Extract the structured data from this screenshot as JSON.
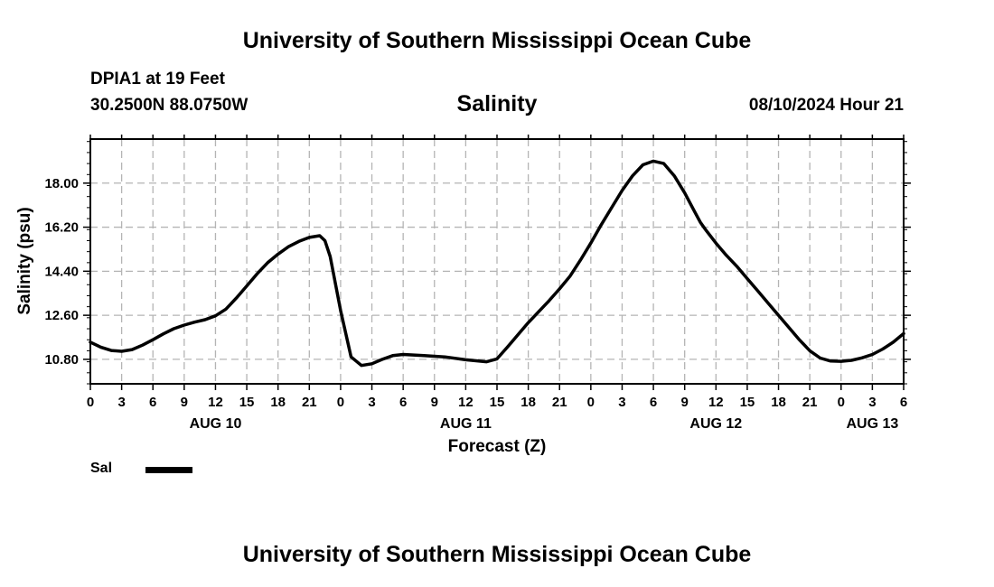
{
  "header": {
    "title": "University of Southern Mississippi Ocean Cube",
    "station": "DPIA1 at 19 Feet",
    "coords": "30.2500N  88.0750W",
    "subtitle": "Salinity",
    "datetime": "08/10/2024 Hour 21"
  },
  "footer": {
    "title": "University of Southern Mississippi Ocean Cube"
  },
  "legend": {
    "label": "Sal",
    "color": "#000000"
  },
  "chart_data": {
    "type": "line",
    "title": "Salinity",
    "xlabel": "Forecast (Z)",
    "ylabel": "Salinity (psu)",
    "x_unit": "hours since AUG 10 00Z",
    "xlim": [
      0,
      78
    ],
    "ylim": [
      9.8,
      19.8
    ],
    "yticks": [
      10.8,
      12.6,
      14.4,
      16.2,
      18.0
    ],
    "ytick_labels": [
      "10.80",
      "12.60",
      "14.40",
      "16.20",
      "18.00"
    ],
    "minor_y_step": 0.45,
    "xticks": [
      0,
      3,
      6,
      9,
      12,
      15,
      18,
      21,
      24,
      27,
      30,
      33,
      36,
      39,
      42,
      45,
      48,
      51,
      54,
      57,
      60,
      63,
      66,
      69,
      72,
      75,
      78
    ],
    "xtick_labels": [
      "0",
      "3",
      "6",
      "9",
      "12",
      "15",
      "18",
      "21",
      "0",
      "3",
      "6",
      "9",
      "12",
      "15",
      "18",
      "21",
      "0",
      "3",
      "6",
      "9",
      "12",
      "15",
      "18",
      "21",
      "0",
      "3",
      "6"
    ],
    "day_labels": [
      {
        "x": 12,
        "label": "AUG 10"
      },
      {
        "x": 36,
        "label": "AUG 11"
      },
      {
        "x": 60,
        "label": "AUG 12"
      },
      {
        "x": 75,
        "label": "AUG 13"
      }
    ],
    "grid": true,
    "series": [
      {
        "name": "Sal",
        "color": "#000000",
        "x": [
          0,
          1,
          2,
          3,
          4,
          5,
          6,
          7,
          8,
          9,
          10,
          11,
          12,
          13,
          14,
          15,
          16,
          17,
          18,
          19,
          20,
          21,
          22,
          22.5,
          23,
          24,
          25,
          26,
          27,
          28,
          29,
          30,
          32,
          34,
          36,
          38,
          39,
          40,
          41,
          42,
          43,
          44,
          45,
          46,
          47,
          48,
          49,
          50,
          51,
          52,
          53,
          54,
          55,
          56,
          57,
          58,
          58.5,
          59,
          60,
          61,
          62,
          63,
          64,
          65,
          66,
          67,
          68,
          69,
          70,
          71,
          72,
          73,
          74,
          75,
          76,
          77,
          78
        ],
        "values": [
          11.5,
          11.3,
          11.16,
          11.13,
          11.2,
          11.38,
          11.6,
          11.84,
          12.05,
          12.2,
          12.32,
          12.42,
          12.58,
          12.85,
          13.3,
          13.8,
          14.3,
          14.75,
          15.1,
          15.4,
          15.62,
          15.78,
          15.85,
          15.65,
          15.0,
          12.8,
          10.9,
          10.55,
          10.62,
          10.8,
          10.95,
          11.0,
          10.95,
          10.9,
          10.78,
          10.7,
          10.82,
          11.3,
          11.8,
          12.3,
          12.75,
          13.2,
          13.68,
          14.2,
          14.85,
          15.55,
          16.3,
          17.0,
          17.7,
          18.3,
          18.75,
          18.9,
          18.8,
          18.3,
          17.6,
          16.8,
          16.4,
          16.1,
          15.55,
          15.05,
          14.6,
          14.1,
          13.6,
          13.1,
          12.6,
          12.1,
          11.6,
          11.15,
          10.85,
          10.73,
          10.72,
          10.76,
          10.86,
          11.0,
          11.22,
          11.5,
          11.85
        ]
      }
    ]
  }
}
